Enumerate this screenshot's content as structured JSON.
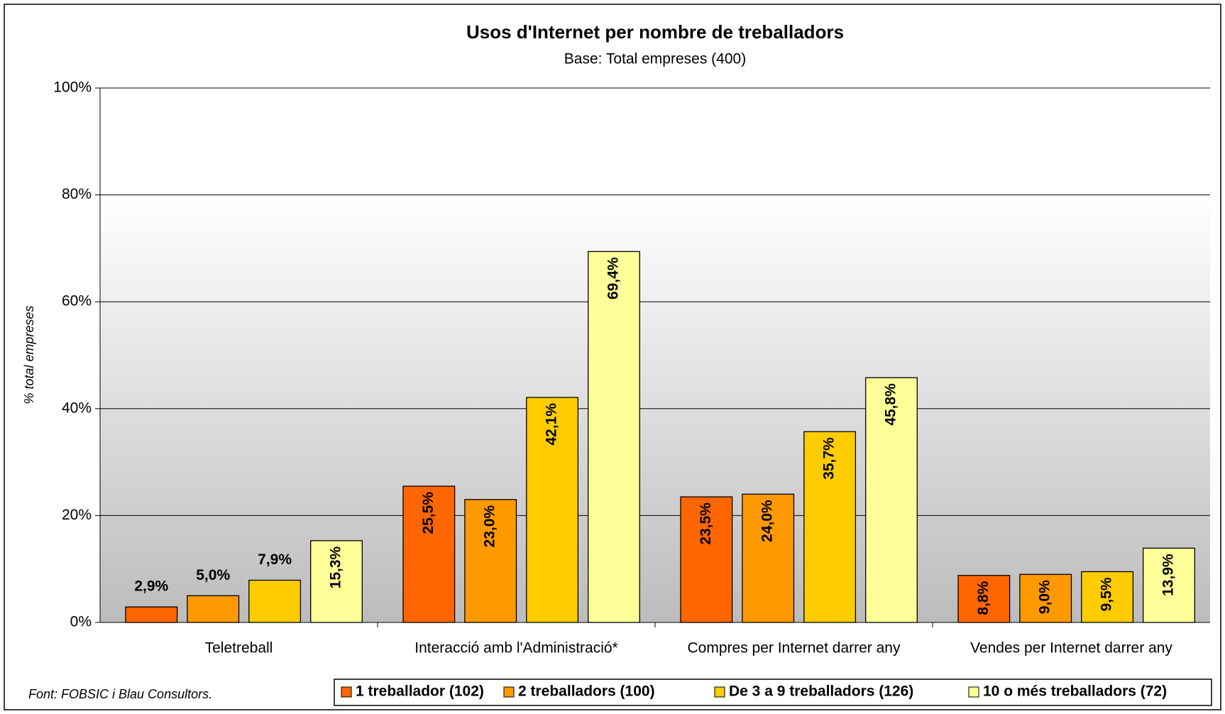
{
  "chart_data": {
    "type": "bar",
    "title": "Usos d'Internet per nombre de treballadors",
    "subtitle": "Base: Total empreses (400)",
    "y_label": "% total empreses",
    "source": "Font: FOBSIC i Blau Consultors.",
    "categories": [
      "Teletreball",
      "Interacció amb l'Administració*",
      "Compres per Internet darrer any",
      "Vendes per Internet darrer any"
    ],
    "series": [
      {
        "name": "1 treballador (102)",
        "color": "#ff6600",
        "values": [
          2.9,
          25.5,
          23.5,
          8.8
        ],
        "value_labels": [
          "2,9%",
          "25,5%",
          "23,5%",
          "8,8%"
        ]
      },
      {
        "name": "2 treballadors (100)",
        "color": "#ff9900",
        "values": [
          5.0,
          23.0,
          24.0,
          9.0
        ],
        "value_labels": [
          "5,0%",
          "23,0%",
          "24,0%",
          "9,0%"
        ]
      },
      {
        "name": "De 3 a 9 treballadors (126)",
        "color": "#ffcc00",
        "values": [
          7.9,
          42.1,
          35.7,
          9.5
        ],
        "value_labels": [
          "7,9%",
          "42,1%",
          "35,7%",
          "9,5%"
        ]
      },
      {
        "name": "10 o més treballadors (72)",
        "color": "#ffff99",
        "values": [
          15.3,
          69.4,
          45.8,
          13.9
        ],
        "value_labels": [
          "15,3%",
          "69,4%",
          "45,8%",
          "13,9%"
        ]
      }
    ],
    "ylim": [
      0,
      100
    ],
    "yticks": [
      {
        "value": 0,
        "label": "0%"
      },
      {
        "value": 20,
        "label": "20%"
      },
      {
        "value": 40,
        "label": "40%"
      },
      {
        "value": 60,
        "label": "60%"
      },
      {
        "value": 80,
        "label": "80%"
      },
      {
        "value": 100,
        "label": "100%"
      }
    ],
    "grid": true,
    "legend": "bottom"
  }
}
